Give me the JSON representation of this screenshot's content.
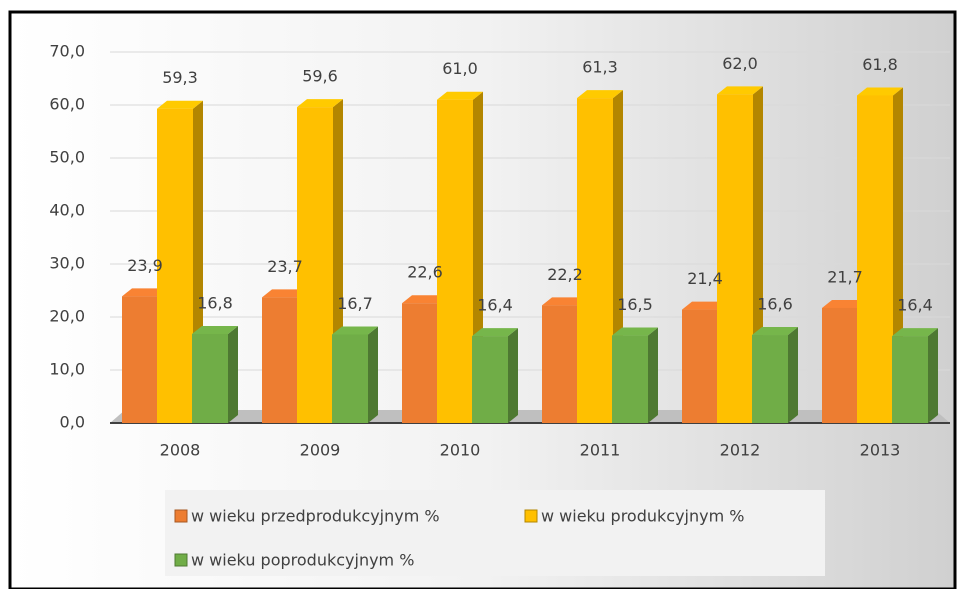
{
  "chart_data": {
    "type": "bar",
    "categories": [
      "2008",
      "2009",
      "2010",
      "2011",
      "2012",
      "2013"
    ],
    "series": [
      {
        "name": "w wieku przedprodukcyjnym %",
        "color": "#ed7d31",
        "values": [
          23.9,
          23.7,
          22.6,
          22.2,
          21.4,
          21.7
        ],
        "value_labels": [
          "23,9",
          "23,7",
          "22,6",
          "22,2",
          "21,4",
          "21,7"
        ]
      },
      {
        "name": "w wieku produkcyjnym %",
        "color": "#ffc000",
        "values": [
          59.3,
          59.6,
          61.0,
          61.3,
          62.0,
          61.8
        ],
        "value_labels": [
          "59,3",
          "59,6",
          "61,0",
          "61,3",
          "62,0",
          "61,8"
        ]
      },
      {
        "name": "w wieku poprodukcyjnym %",
        "color": "#70ad47",
        "values": [
          16.8,
          16.7,
          16.4,
          16.5,
          16.6,
          16.4
        ],
        "value_labels": [
          "16,8",
          "16,7",
          "16,4",
          "16,5",
          "16,6",
          "16,4"
        ]
      }
    ],
    "ylim": [
      0,
      70
    ],
    "yticks": [
      {
        "value": 0,
        "label": "0,0"
      },
      {
        "value": 10,
        "label": "10,0"
      },
      {
        "value": 20,
        "label": "20,0"
      },
      {
        "value": 30,
        "label": "30,0"
      },
      {
        "value": 40,
        "label": "40,0"
      },
      {
        "value": 50,
        "label": "50,0"
      },
      {
        "value": 60,
        "label": "60,0"
      },
      {
        "value": 70,
        "label": "70,0"
      }
    ],
    "grid": true
  }
}
